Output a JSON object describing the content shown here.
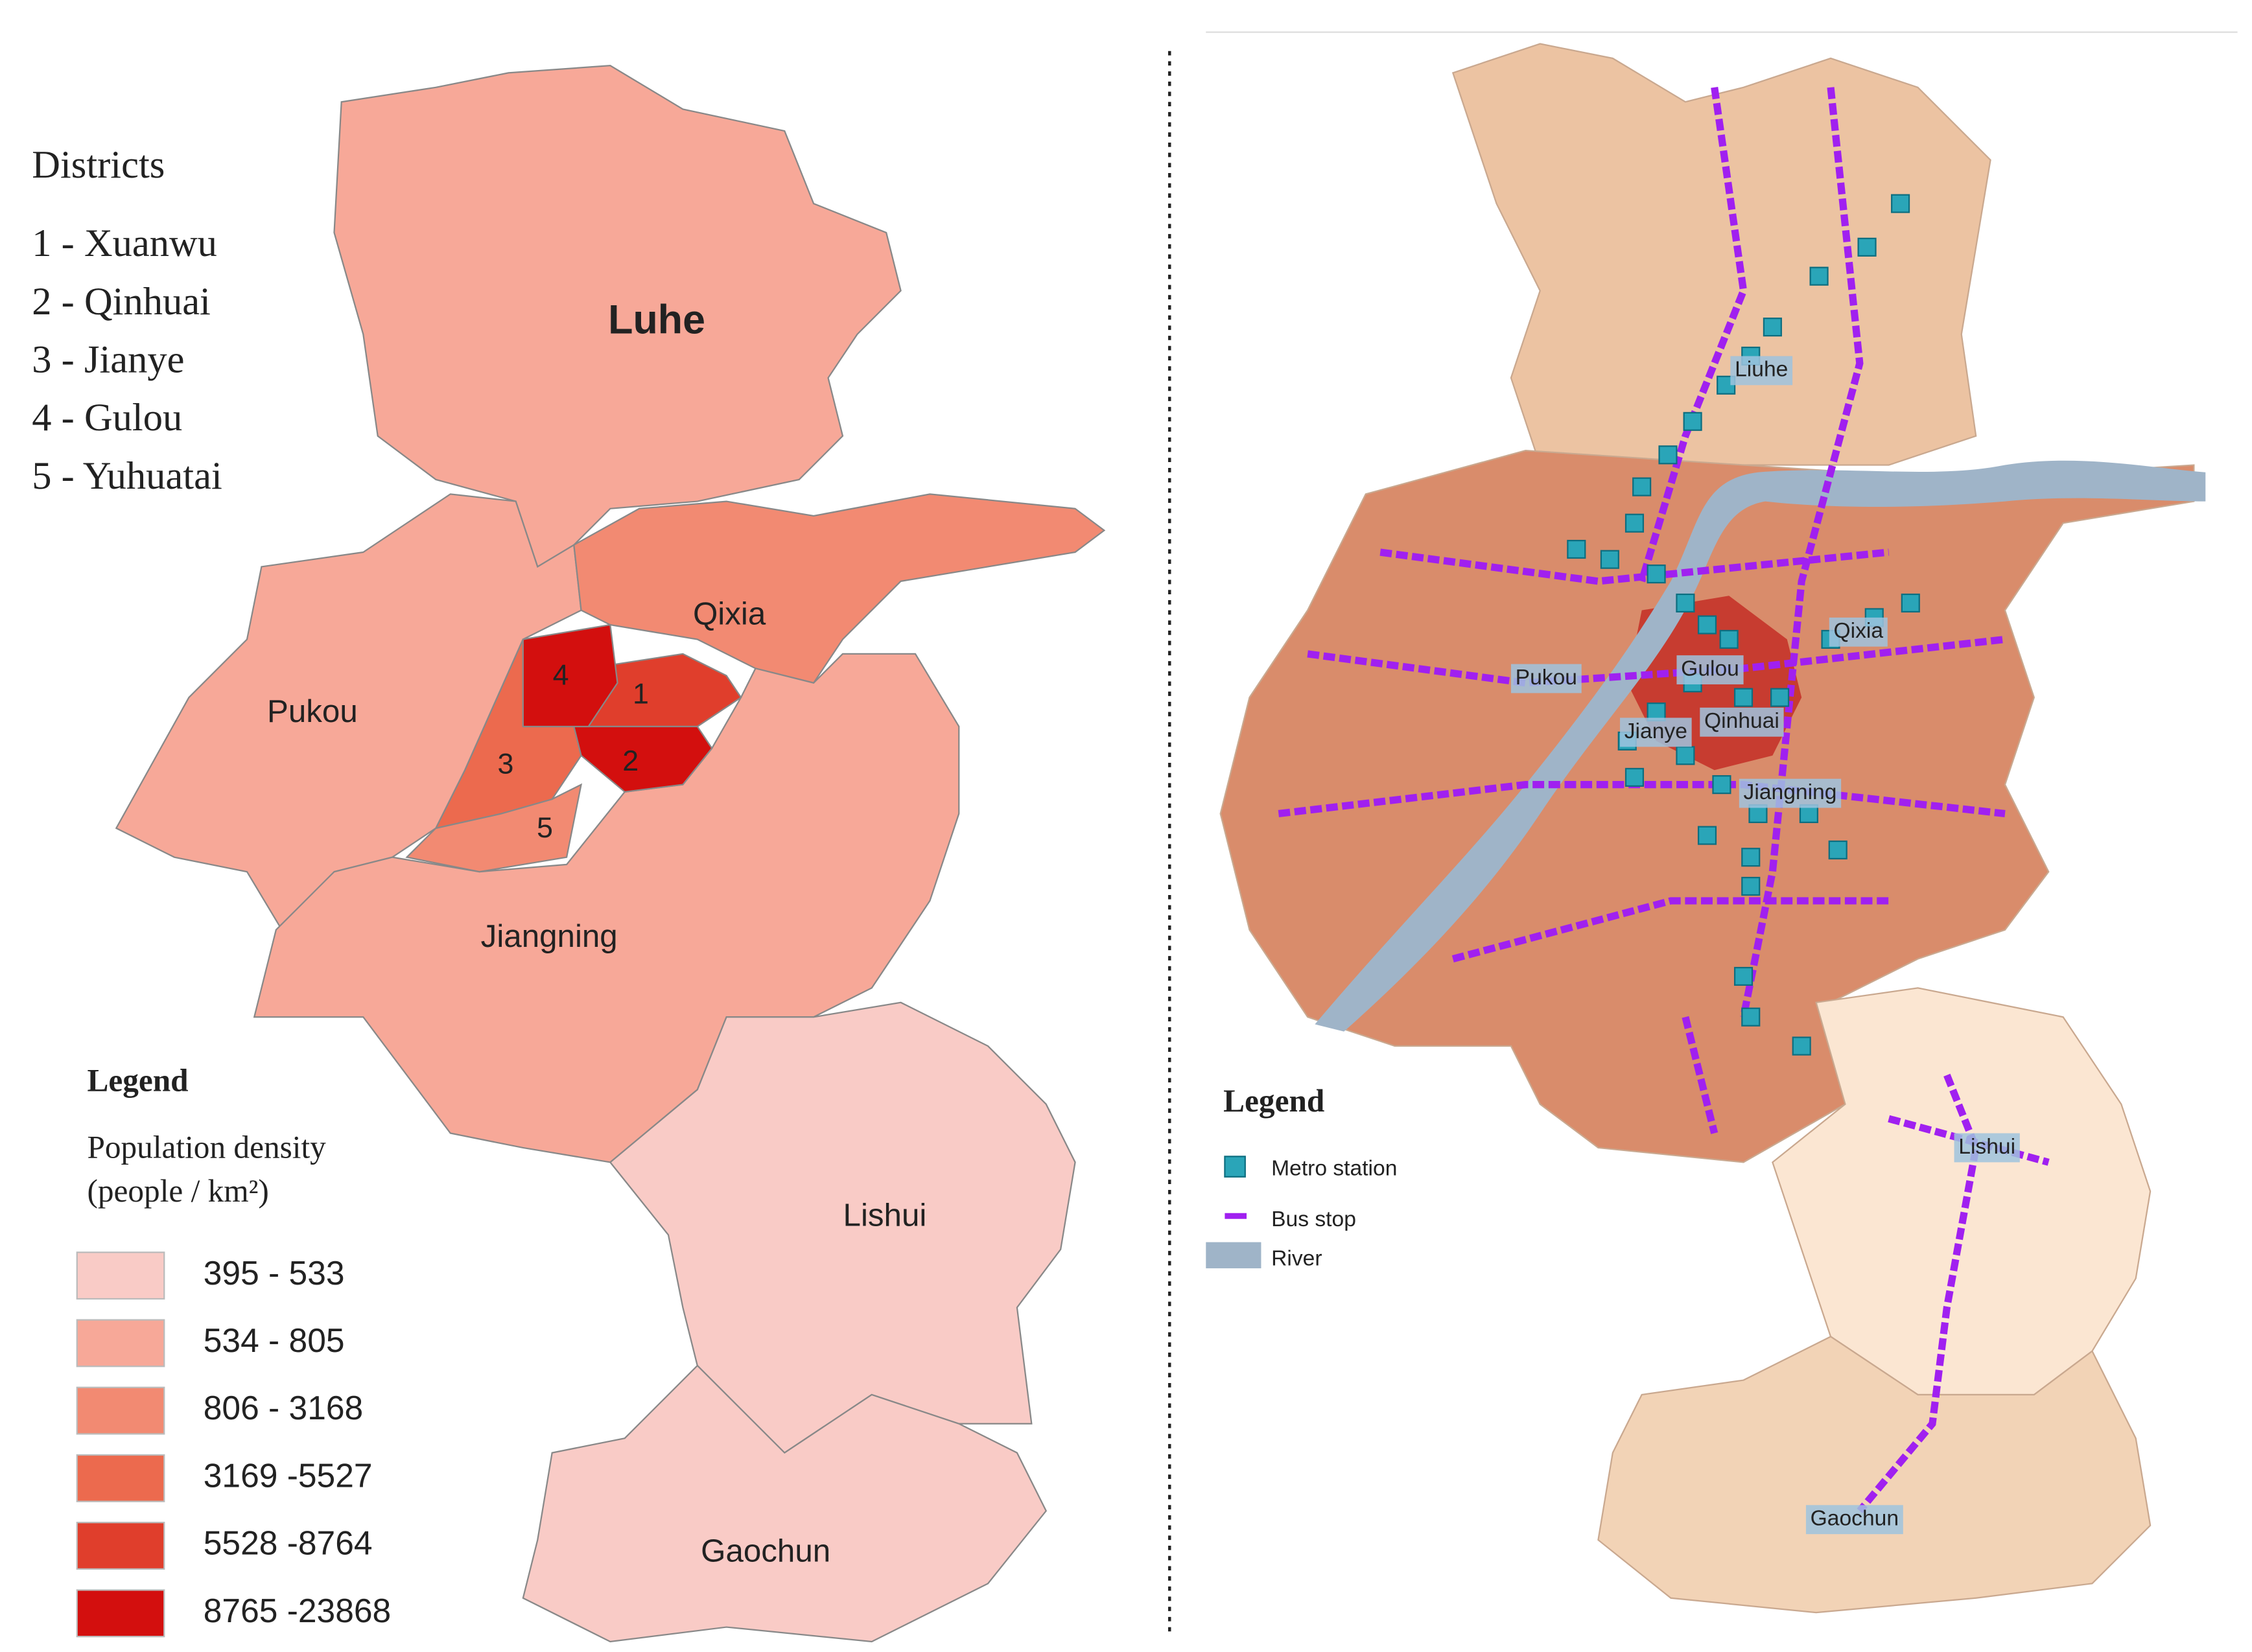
{
  "left_map": {
    "districts_title": "Districts",
    "districts": [
      "1 - Xuanwu",
      "2 - Qinhuai",
      "3 - Jianye",
      "4 - Gulou",
      "5 - Yuhuatai"
    ],
    "labels": {
      "luhe": "Luhe",
      "qixia": "Qixia",
      "pukou": "Pukou",
      "jiangning": "Jiangning",
      "lishui": "Lishui",
      "gaochun": "Gaochun",
      "d1": "1",
      "d2": "2",
      "d3": "3",
      "d4": "4",
      "d5": "5"
    },
    "legend": {
      "title": "Legend",
      "subtitle_1": "Population density",
      "subtitle_2": "(people / km²)",
      "classes": [
        {
          "label": "395 - 533",
          "color": "#f9cbc6"
        },
        {
          "label": "534 - 805",
          "color": "#f7a898"
        },
        {
          "label": "806 - 3168",
          "color": "#f28a72"
        },
        {
          "label": "3169 -5527",
          "color": "#ec6a4e"
        },
        {
          "label": "5528 -8764",
          "color": "#e03e2c"
        },
        {
          "label": "8765 -23868",
          "color": "#d30f0e"
        }
      ]
    }
  },
  "right_map": {
    "labels": {
      "liuhe": "Liuhe",
      "pukou": "Pukou",
      "gulou": "Gulou",
      "qixia": "Qixia",
      "jianye": "Jianye",
      "qinhuai": "Qinhuai",
      "jiangning": "Jiangning",
      "lishui": "Lishui",
      "gaochun": "Gaochun"
    },
    "legend": {
      "title": "Legend",
      "metro": "Metro station",
      "bus": "Bus stop",
      "river": "River"
    }
  }
}
